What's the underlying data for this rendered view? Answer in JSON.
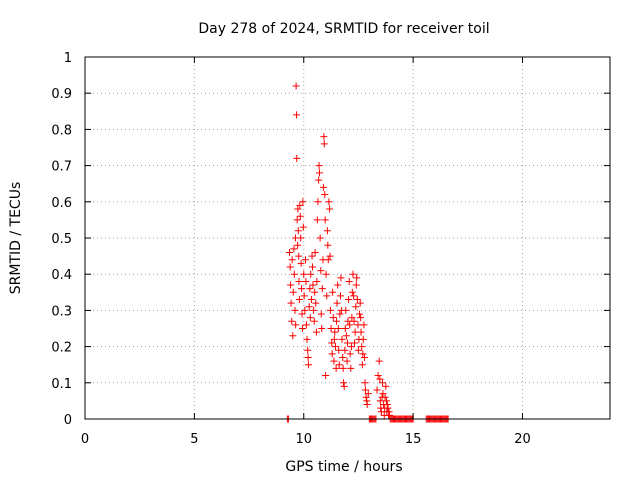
{
  "chart_data": {
    "type": "scatter",
    "title": "Day 278 of 2024, SRMTID for receiver toil",
    "xlabel": "GPS time / hours",
    "ylabel": "SRMTID / TECUs",
    "xlim": [
      0,
      24
    ],
    "ylim": [
      0,
      1
    ],
    "xticks": [
      0,
      5,
      10,
      15,
      20
    ],
    "yticks": [
      0,
      0.1,
      0.2,
      0.3,
      0.4,
      0.5,
      0.6,
      0.7,
      0.8,
      0.9,
      1
    ],
    "xtick_labels": [
      "0",
      "5",
      "10",
      "15",
      "20"
    ],
    "ytick_labels": [
      "0",
      "0.1",
      "0.2",
      "0.3",
      "0.4",
      "0.5",
      "0.6",
      "0.7",
      "0.8",
      "0.9",
      "1"
    ],
    "grid": true,
    "marker": "+",
    "marker_color": "#ff0000",
    "series": [
      {
        "name": "SRMTID",
        "points": [
          [
            9.25,
            0
          ],
          [
            9.3,
            0
          ],
          [
            9.35,
            0.46
          ],
          [
            9.38,
            0.42
          ],
          [
            9.4,
            0.37
          ],
          [
            9.42,
            0.32
          ],
          [
            9.45,
            0.27
          ],
          [
            9.47,
            0.44
          ],
          [
            9.5,
            0.23
          ],
          [
            9.52,
            0.35
          ],
          [
            9.55,
            0.47
          ],
          [
            9.57,
            0.4
          ],
          [
            9.6,
            0.3
          ],
          [
            9.62,
            0.5
          ],
          [
            9.63,
            0.26
          ],
          [
            9.65,
            0.92
          ],
          [
            9.67,
            0.84
          ],
          [
            9.68,
            0.72
          ],
          [
            9.7,
            0.55
          ],
          [
            9.72,
            0.48
          ],
          [
            9.73,
            0.58
          ],
          [
            9.75,
            0.52
          ],
          [
            9.77,
            0.45
          ],
          [
            9.78,
            0.38
          ],
          [
            9.8,
            0.33
          ],
          [
            9.82,
            0.59
          ],
          [
            9.84,
            0.56
          ],
          [
            9.86,
            0.5
          ],
          [
            9.88,
            0.43
          ],
          [
            9.9,
            0.36
          ],
          [
            9.92,
            0.29
          ],
          [
            9.94,
            0.25
          ],
          [
            9.96,
            0.6
          ],
          [
            9.98,
            0.53
          ],
          [
            10.0,
            0.4
          ],
          [
            10.02,
            0.34
          ],
          [
            10.05,
            0.3
          ],
          [
            10.08,
            0.44
          ],
          [
            10.1,
            0.38
          ],
          [
            10.12,
            0.26
          ],
          [
            10.15,
            0.22
          ],
          [
            10.18,
            0.19
          ],
          [
            10.2,
            0.17
          ],
          [
            10.22,
            0.15
          ],
          [
            10.25,
            0.31
          ],
          [
            10.28,
            0.36
          ],
          [
            10.3,
            0.28
          ],
          [
            10.32,
            0.4
          ],
          [
            10.35,
            0.33
          ],
          [
            10.38,
            0.45
          ],
          [
            10.4,
            0.42
          ],
          [
            10.42,
            0.37
          ],
          [
            10.45,
            0.3
          ],
          [
            10.48,
            0.27
          ],
          [
            10.5,
            0.35
          ],
          [
            10.52,
            0.46
          ],
          [
            10.55,
            0.32
          ],
          [
            10.58,
            0.24
          ],
          [
            10.6,
            0.38
          ],
          [
            10.62,
            0.55
          ],
          [
            10.65,
            0.6
          ],
          [
            10.68,
            0.66
          ],
          [
            10.7,
            0.7
          ],
          [
            10.72,
            0.68
          ],
          [
            10.75,
            0.5
          ],
          [
            10.78,
            0.41
          ],
          [
            10.8,
            0.29
          ],
          [
            10.82,
            0.25
          ],
          [
            10.85,
            0.36
          ],
          [
            10.88,
            0.44
          ],
          [
            10.9,
            0.64
          ],
          [
            10.92,
            0.78
          ],
          [
            10.94,
            0.76
          ],
          [
            10.96,
            0.62
          ],
          [
            10.98,
            0.55
          ],
          [
            11.0,
            0.12
          ],
          [
            11.02,
            0.4
          ],
          [
            11.05,
            0.34
          ],
          [
            11.08,
            0.52
          ],
          [
            11.1,
            0.48
          ],
          [
            11.12,
            0.44
          ],
          [
            11.15,
            0.6
          ],
          [
            11.18,
            0.58
          ],
          [
            11.2,
            0.45
          ],
          [
            11.22,
            0.3
          ],
          [
            11.25,
            0.25
          ],
          [
            11.28,
            0.21
          ],
          [
            11.3,
            0.18
          ],
          [
            11.32,
            0.35
          ],
          [
            11.35,
            0.28
          ],
          [
            11.38,
            0.16
          ],
          [
            11.4,
            0.22
          ],
          [
            11.42,
            0.24
          ],
          [
            11.45,
            0.2
          ],
          [
            11.48,
            0.14
          ],
          [
            11.5,
            0.27
          ],
          [
            11.52,
            0.32
          ],
          [
            11.55,
            0.37
          ],
          [
            11.58,
            0.25
          ],
          [
            11.6,
            0.19
          ],
          [
            11.62,
            0.15
          ],
          [
            11.65,
            0.29
          ],
          [
            11.68,
            0.34
          ],
          [
            11.7,
            0.39
          ],
          [
            11.72,
            0.3
          ],
          [
            11.75,
            0.22
          ],
          [
            11.78,
            0.17
          ],
          [
            11.8,
            0.14
          ],
          [
            11.82,
            0.1
          ],
          [
            11.85,
            0.09
          ],
          [
            11.88,
            0.19
          ],
          [
            11.9,
            0.25
          ],
          [
            11.92,
            0.3
          ],
          [
            11.95,
            0.23
          ],
          [
            11.98,
            0.16
          ],
          [
            12.0,
            0.21
          ],
          [
            12.02,
            0.27
          ],
          [
            12.05,
            0.33
          ],
          [
            12.08,
            0.38
          ],
          [
            12.1,
            0.26
          ],
          [
            12.12,
            0.18
          ],
          [
            12.15,
            0.14
          ],
          [
            12.18,
            0.2
          ],
          [
            12.2,
            0.28
          ],
          [
            12.22,
            0.35
          ],
          [
            12.25,
            0.4
          ],
          [
            12.28,
            0.34
          ],
          [
            12.3,
            0.27
          ],
          [
            12.32,
            0.21
          ],
          [
            12.35,
            0.24
          ],
          [
            12.38,
            0.31
          ],
          [
            12.4,
            0.37
          ],
          [
            12.42,
            0.39
          ],
          [
            12.45,
            0.33
          ],
          [
            12.48,
            0.26
          ],
          [
            12.5,
            0.19
          ],
          [
            12.52,
            0.22
          ],
          [
            12.55,
            0.29
          ],
          [
            12.58,
            0.32
          ],
          [
            12.6,
            0.28
          ],
          [
            12.62,
            0.24
          ],
          [
            12.65,
            0.2
          ],
          [
            12.68,
            0.15
          ],
          [
            12.7,
            0.18
          ],
          [
            12.72,
            0.22
          ],
          [
            12.75,
            0.26
          ],
          [
            12.78,
            0.17
          ],
          [
            12.8,
            0.1
          ],
          [
            12.82,
            0.08
          ],
          [
            12.85,
            0.06
          ],
          [
            12.88,
            0.05
          ],
          [
            12.9,
            0.04
          ],
          [
            12.95,
            0.07
          ],
          [
            13.0,
            0
          ],
          [
            13.05,
            0
          ],
          [
            13.1,
            0
          ],
          [
            13.15,
            0
          ],
          [
            13.2,
            0
          ],
          [
            13.25,
            0
          ],
          [
            13.3,
            0
          ],
          [
            13.35,
            0.08
          ],
          [
            13.4,
            0.12
          ],
          [
            13.45,
            0.16
          ],
          [
            13.48,
            0.11
          ],
          [
            13.5,
            0.05
          ],
          [
            13.52,
            0.03
          ],
          [
            13.55,
            0.02
          ],
          [
            13.58,
            0.06
          ],
          [
            13.6,
            0.1
          ],
          [
            13.62,
            0.07
          ],
          [
            13.65,
            0.04
          ],
          [
            13.68,
            0.01
          ],
          [
            13.7,
            0.03
          ],
          [
            13.72,
            0.06
          ],
          [
            13.75,
            0.09
          ],
          [
            13.78,
            0.05
          ],
          [
            13.8,
            0.02
          ],
          [
            13.82,
            0.04
          ],
          [
            13.85,
            0.03
          ],
          [
            13.88,
            0.01
          ],
          [
            13.9,
            0.02
          ],
          [
            13.92,
            0.01
          ],
          [
            13.95,
            0
          ],
          [
            14.0,
            0
          ],
          [
            14.05,
            0
          ],
          [
            14.1,
            0
          ],
          [
            14.15,
            0
          ],
          [
            14.2,
            0
          ],
          [
            14.25,
            0
          ],
          [
            14.3,
            0
          ],
          [
            14.35,
            0
          ],
          [
            14.4,
            0
          ],
          [
            14.45,
            0
          ],
          [
            14.5,
            0
          ],
          [
            14.55,
            0
          ],
          [
            14.6,
            0
          ],
          [
            14.65,
            0
          ],
          [
            14.7,
            0
          ],
          [
            14.75,
            0
          ],
          [
            14.8,
            0
          ],
          [
            14.85,
            0
          ],
          [
            14.9,
            0
          ],
          [
            14.95,
            0
          ],
          [
            15.0,
            0
          ],
          [
            15.6,
            0
          ],
          [
            15.65,
            0
          ],
          [
            15.7,
            0
          ],
          [
            15.75,
            0
          ],
          [
            15.8,
            0
          ],
          [
            15.85,
            0
          ],
          [
            15.9,
            0
          ],
          [
            15.95,
            0
          ],
          [
            16.0,
            0
          ],
          [
            16.05,
            0
          ],
          [
            16.1,
            0
          ],
          [
            16.15,
            0
          ],
          [
            16.2,
            0
          ],
          [
            16.25,
            0
          ],
          [
            16.3,
            0
          ],
          [
            16.35,
            0
          ],
          [
            16.4,
            0
          ],
          [
            16.45,
            0
          ],
          [
            16.5,
            0
          ],
          [
            16.55,
            0
          ],
          [
            16.6,
            0
          ]
        ]
      }
    ]
  }
}
